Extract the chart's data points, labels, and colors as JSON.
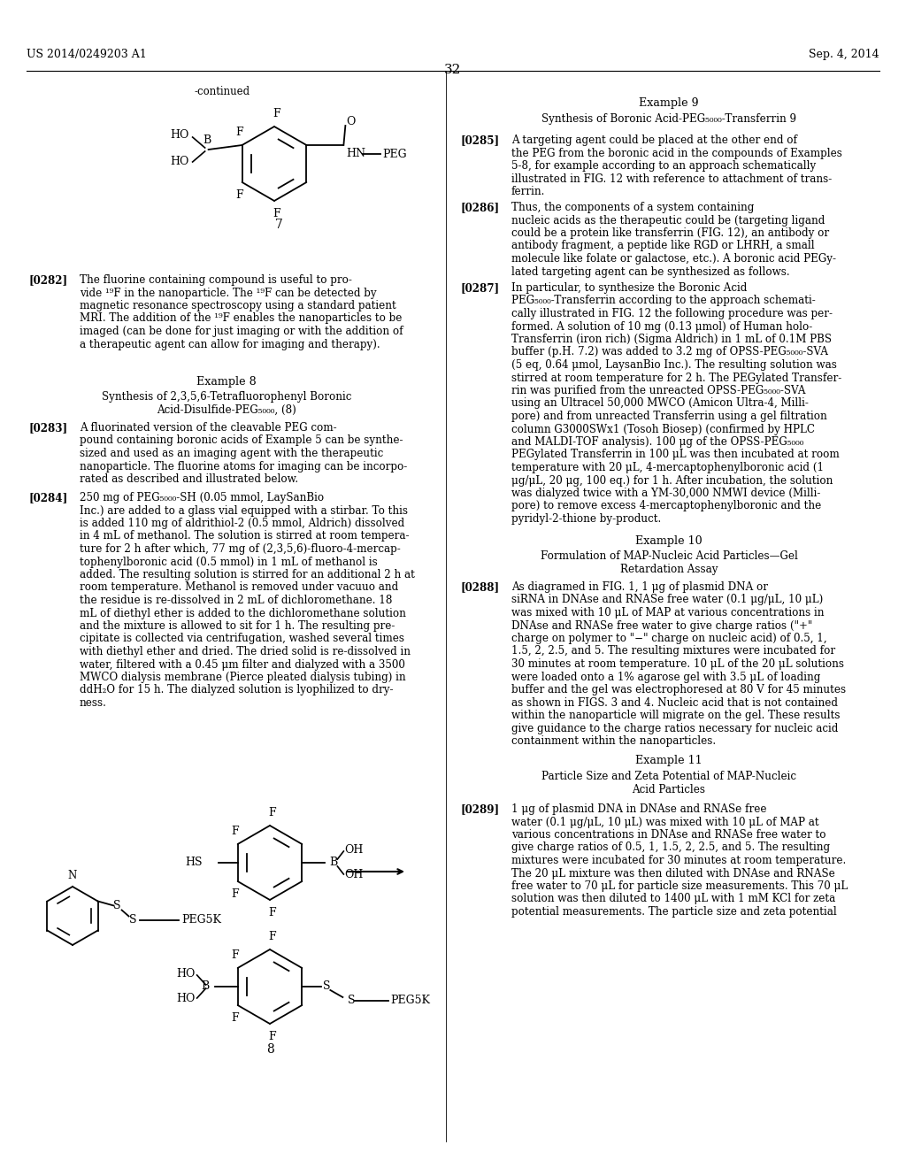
{
  "bg_color": "#ffffff",
  "header_left": "US 2014/0249203 A1",
  "header_right": "Sep. 4, 2014",
  "page_number": "32"
}
